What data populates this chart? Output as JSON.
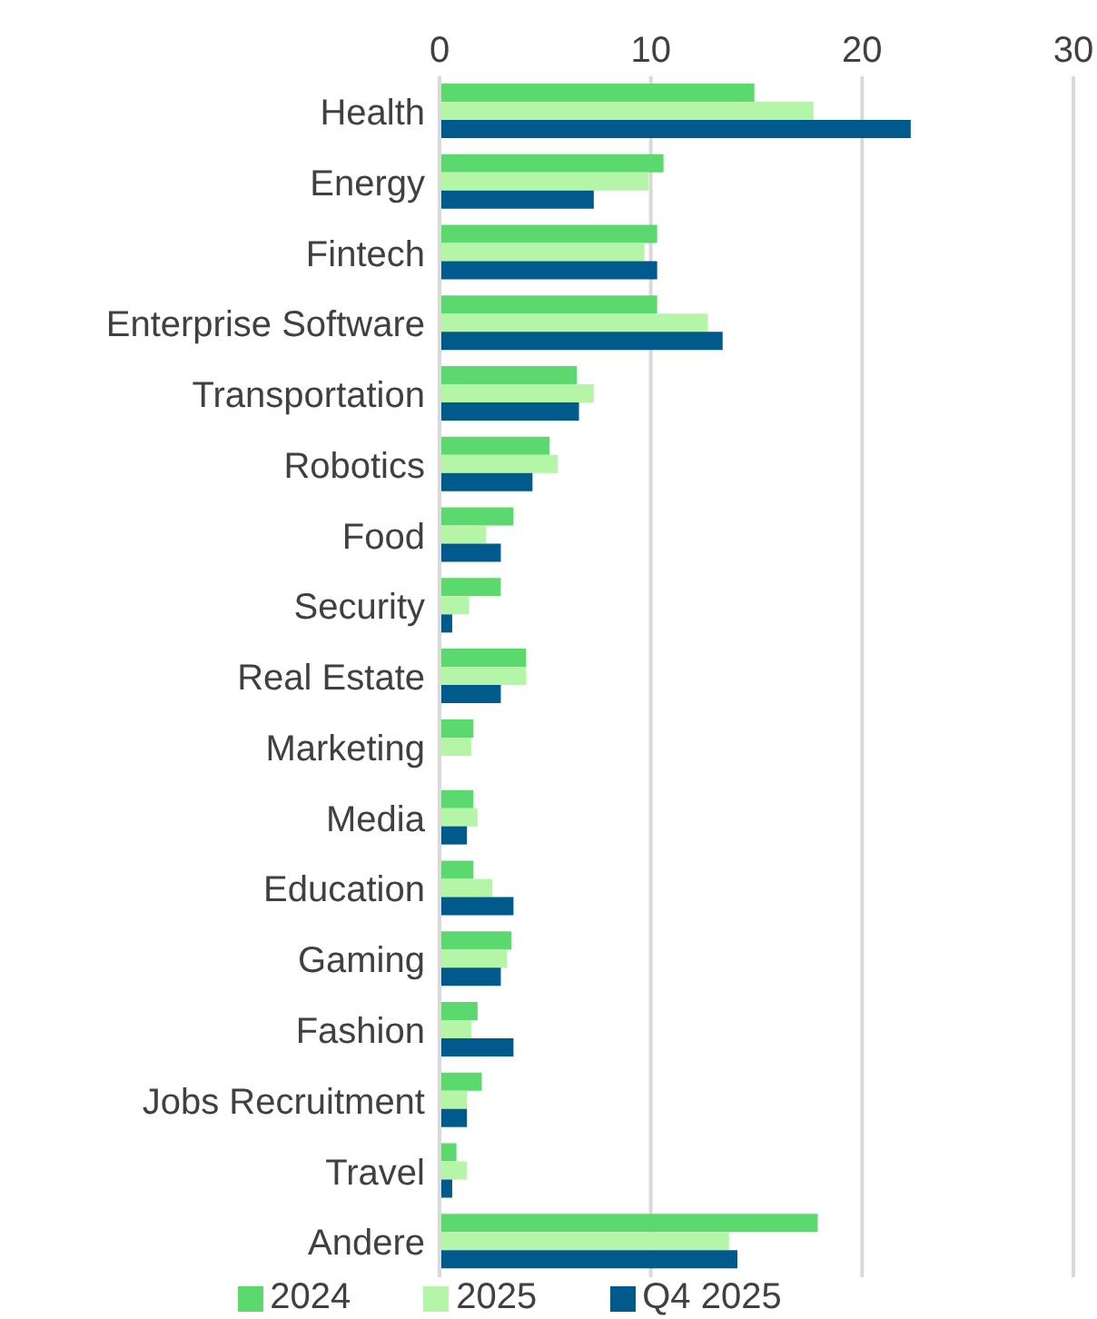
{
  "chart_data": {
    "type": "bar",
    "orientation": "horizontal",
    "categories": [
      "Health",
      "Energy",
      "Fintech",
      "Enterprise Software",
      "Transportation",
      "Robotics",
      "Food",
      "Security",
      "Real Estate",
      "Marketing",
      "Media",
      "Education",
      "Gaming",
      "Fashion",
      "Jobs Recruitment",
      "Travel",
      "Andere"
    ],
    "series": [
      {
        "name": "2024",
        "color": "#5bd96e",
        "values": [
          14.9,
          10.6,
          10.3,
          10.3,
          6.5,
          5.2,
          3.5,
          2.9,
          4.1,
          1.6,
          1.6,
          1.6,
          3.4,
          1.8,
          2.0,
          0.8,
          17.9
        ]
      },
      {
        "name": "2025",
        "color": "#b5f5a8",
        "values": [
          17.7,
          9.9,
          9.7,
          12.7,
          7.3,
          5.6,
          2.2,
          1.4,
          4.1,
          1.5,
          1.8,
          2.5,
          3.2,
          1.5,
          1.3,
          1.3,
          13.7
        ]
      },
      {
        "name": "Q4 2025",
        "color": "#005a8c",
        "values": [
          22.3,
          7.3,
          10.3,
          13.4,
          6.6,
          4.4,
          2.9,
          0.6,
          2.9,
          null,
          1.3,
          3.5,
          2.9,
          3.5,
          1.3,
          0.6,
          14.1
        ]
      }
    ],
    "xlim": [
      0,
      30
    ],
    "xticks": [
      0,
      10,
      20,
      30
    ],
    "grid": "x",
    "legend": "bottom"
  }
}
